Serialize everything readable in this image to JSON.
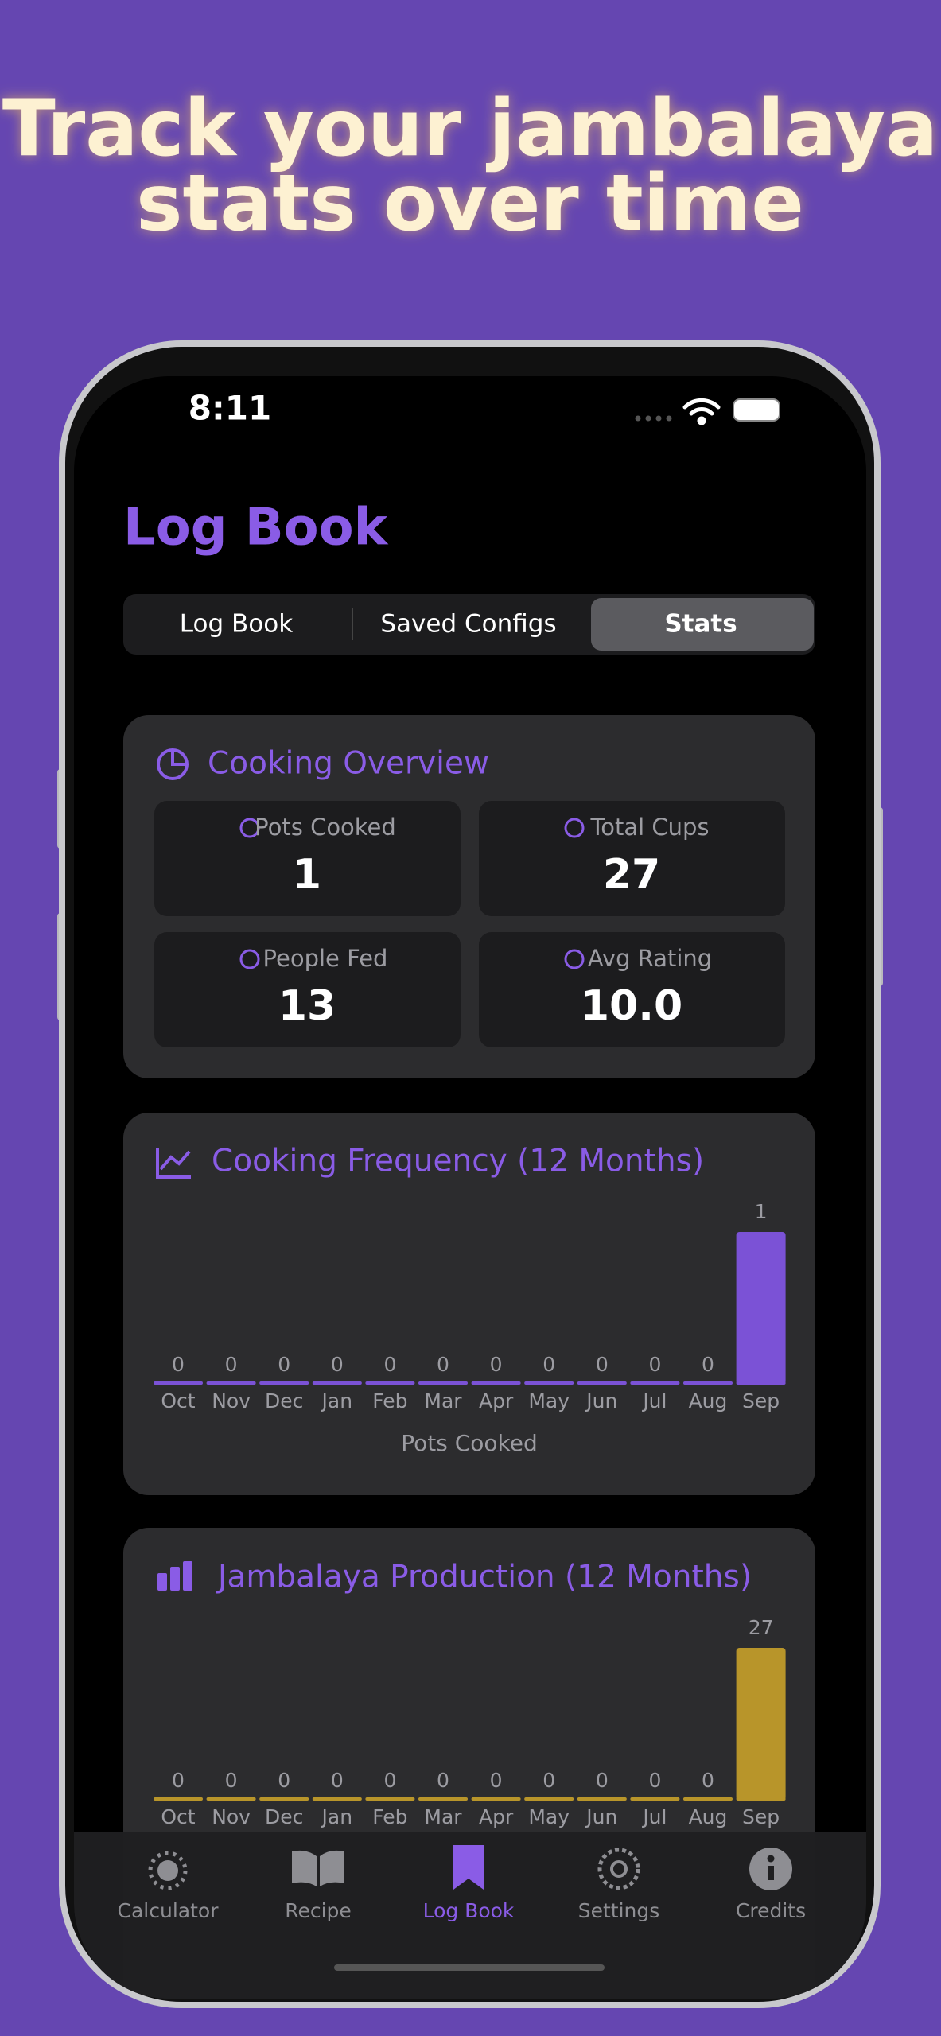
{
  "headline": [
    "Track your jambalaya",
    "stats over time"
  ],
  "status_bar": {
    "time": "8:11"
  },
  "header": {
    "title": "Log Book"
  },
  "segments": [
    "Log Book",
    "Saved Configs",
    "Stats"
  ],
  "overview": {
    "title": "Cooking Overview",
    "tiles": [
      {
        "label": "Pots Cooked",
        "value": "1"
      },
      {
        "label": "Total Cups",
        "value": "27"
      },
      {
        "label": "People Fed",
        "value": "13"
      },
      {
        "label": "Avg Rating",
        "value": "10.0"
      }
    ]
  },
  "chart_data": [
    {
      "type": "bar",
      "title": "Cooking Frequency (12 Months)",
      "categories": [
        "Oct",
        "Nov",
        "Dec",
        "Jan",
        "Feb",
        "Mar",
        "Apr",
        "May",
        "Jun",
        "Jul",
        "Aug",
        "Sep"
      ],
      "values": [
        0,
        0,
        0,
        0,
        0,
        0,
        0,
        0,
        0,
        0,
        0,
        1
      ],
      "color": "#7b52d6",
      "x_label": "Pots Cooked"
    },
    {
      "type": "bar",
      "title": "Jambalaya Production (12 Months)",
      "categories": [
        "Oct",
        "Nov",
        "Dec",
        "Jan",
        "Feb",
        "Mar",
        "Apr",
        "May",
        "Jun",
        "Jul",
        "Aug",
        "Sep"
      ],
      "values": [
        0,
        0,
        0,
        0,
        0,
        0,
        0,
        0,
        0,
        0,
        0,
        27
      ],
      "color": "#b8952a"
    }
  ],
  "tab_bar": [
    "Calculator",
    "Recipe",
    "Log Book",
    "Settings",
    "Credits"
  ]
}
